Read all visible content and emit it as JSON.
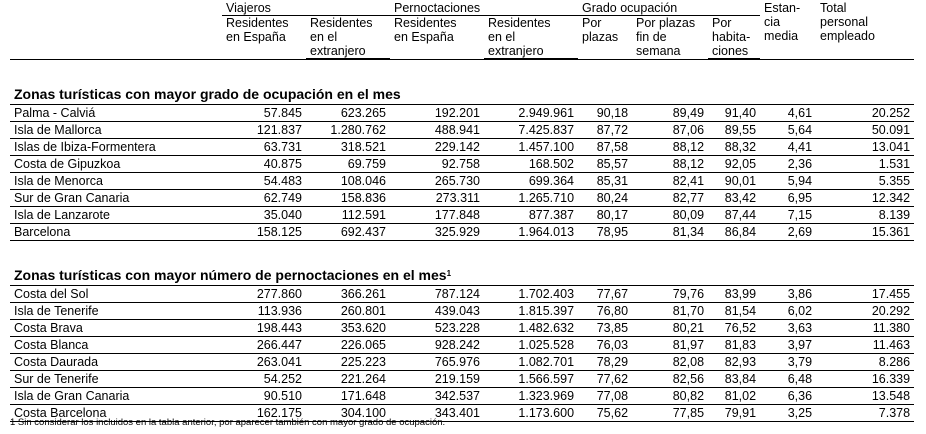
{
  "headers": {
    "groups": {
      "viajeros": "Viajeros",
      "pernoctaciones": "Pernoctaciones",
      "grado": "Grado ocupación",
      "estancia": "Estan-\ncia\nmedia",
      "personal": "Total\npersonal\nempleado"
    },
    "sub": {
      "v_res": "Residentes\nen España",
      "v_ext": "Residentes\nen el\nextranjero",
      "p_res": "Residentes\nen España",
      "p_ext": "Residentes\nen el\nextranjero",
      "g_plazas": "Por\nplazas",
      "g_finde": "Por plazas\nfin de\nsemana",
      "g_hab": "Por\nhabita-\nciones"
    }
  },
  "sections": [
    {
      "title": "Zonas turísticas con mayor grado de ocupación en el mes",
      "sup": "",
      "rows": [
        [
          "Palma - Calviá",
          "57.845",
          "623.265",
          "192.201",
          "2.949.961",
          "90,18",
          "89,49",
          "91,40",
          "4,61",
          "20.252"
        ],
        [
          "Isla de Mallorca",
          "121.837",
          "1.280.762",
          "488.941",
          "7.425.837",
          "87,72",
          "87,06",
          "89,55",
          "5,64",
          "50.091"
        ],
        [
          "Islas de Ibiza-Formentera",
          "63.731",
          "318.521",
          "229.142",
          "1.457.100",
          "87,58",
          "88,12",
          "88,32",
          "4,41",
          "13.041"
        ],
        [
          "Costa de Gipuzkoa",
          "40.875",
          "69.759",
          "92.758",
          "168.502",
          "85,57",
          "88,12",
          "92,05",
          "2,36",
          "1.531"
        ],
        [
          "Isla de Menorca",
          "54.483",
          "108.046",
          "265.730",
          "699.364",
          "85,31",
          "82,41",
          "90,01",
          "5,94",
          "5.355"
        ],
        [
          "Sur de Gran Canaria",
          "62.749",
          "158.836",
          "273.311",
          "1.265.710",
          "80,24",
          "82,77",
          "83,42",
          "6,95",
          "12.342"
        ],
        [
          "Isla de Lanzarote",
          "35.040",
          "112.591",
          "177.848",
          "877.387",
          "80,17",
          "80,09",
          "87,44",
          "7,15",
          "8.139"
        ],
        [
          "Barcelona",
          "158.125",
          "692.437",
          "325.929",
          "1.964.013",
          "78,95",
          "81,34",
          "86,84",
          "2,69",
          "15.361"
        ]
      ]
    },
    {
      "title": "Zonas turísticas con mayor número de pernoctaciones en el mes",
      "sup": "1",
      "rows": [
        [
          "Costa del Sol",
          "277.860",
          "366.261",
          "787.124",
          "1.702.403",
          "77,67",
          "79,76",
          "83,99",
          "3,86",
          "17.455"
        ],
        [
          "Isla de Tenerife",
          "113.936",
          "260.801",
          "439.043",
          "1.815.397",
          "76,80",
          "81,70",
          "81,54",
          "6,02",
          "20.292"
        ],
        [
          "Costa Brava",
          "198.443",
          "353.620",
          "523.228",
          "1.482.632",
          "73,85",
          "80,21",
          "76,52",
          "3,63",
          "11.380"
        ],
        [
          "Costa Blanca",
          "266.447",
          "226.065",
          "928.242",
          "1.025.528",
          "76,03",
          "81,97",
          "81,83",
          "3,97",
          "11.463"
        ],
        [
          "Costa Daurada",
          "263.041",
          "225.223",
          "765.976",
          "1.082.701",
          "78,29",
          "82,08",
          "82,93",
          "3,79",
          "8.286"
        ],
        [
          "Sur de Tenerife",
          "54.252",
          "221.264",
          "219.159",
          "1.566.597",
          "77,62",
          "82,56",
          "83,84",
          "6,48",
          "16.339"
        ],
        [
          "Isla de Gran Canaria",
          "90.510",
          "171.648",
          "342.537",
          "1.323.969",
          "77,08",
          "80,82",
          "81,02",
          "6,36",
          "13.548"
        ],
        [
          "Costa Barcelona",
          "162.175",
          "304.100",
          "343.401",
          "1.173.600",
          "75,62",
          "77,85",
          "79,91",
          "3,25",
          "7.378"
        ]
      ]
    }
  ],
  "footnote": "1 Sin considerar los incluidos en la tabla anterior, por aparecer también con mayor grado de ocupación."
}
